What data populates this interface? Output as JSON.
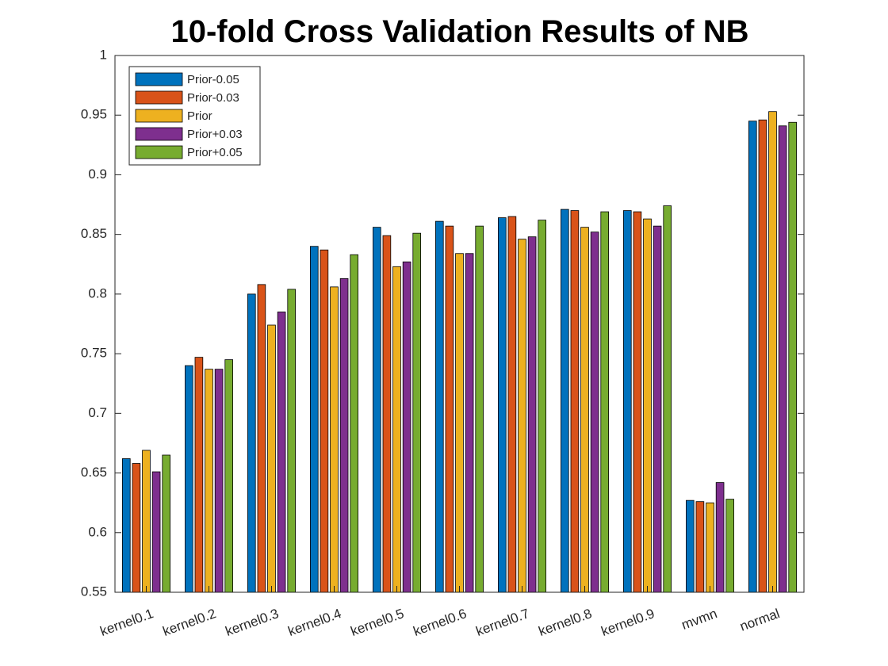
{
  "chart_data": {
    "type": "bar",
    "title": "10-fold Cross Validation Results of NB",
    "xlabel": "",
    "ylabel": "",
    "ylim": [
      0.55,
      1
    ],
    "yticks": [
      "0.55",
      "0.6",
      "0.65",
      "0.7",
      "0.75",
      "0.8",
      "0.85",
      "0.9",
      "0.95",
      "1"
    ],
    "grid": false,
    "legend_position": "top-left",
    "categories": [
      "kernel0.1",
      "kernel0.2",
      "kernel0.3",
      "kernel0.4",
      "kernel0.5",
      "kernel0.6",
      "kernel0.7",
      "kernel0.8",
      "kernel0.9",
      "mvmn",
      "normal"
    ],
    "series": [
      {
        "name": "Prior-0.05",
        "color": "#0072BD",
        "values": [
          0.662,
          0.74,
          0.8,
          0.84,
          0.856,
          0.861,
          0.864,
          0.871,
          0.87,
          0.627,
          0.945
        ]
      },
      {
        "name": "Prior-0.03",
        "color": "#D95319",
        "values": [
          0.658,
          0.747,
          0.808,
          0.837,
          0.849,
          0.857,
          0.865,
          0.87,
          0.869,
          0.626,
          0.946
        ]
      },
      {
        "name": "Prior",
        "color": "#EDB120",
        "values": [
          0.669,
          0.737,
          0.774,
          0.806,
          0.823,
          0.834,
          0.846,
          0.856,
          0.863,
          0.625,
          0.953
        ]
      },
      {
        "name": "Prior+0.03",
        "color": "#7E2F8E",
        "values": [
          0.651,
          0.737,
          0.785,
          0.813,
          0.827,
          0.834,
          0.848,
          0.852,
          0.857,
          0.642,
          0.941
        ]
      },
      {
        "name": "Prior+0.05",
        "color": "#77AC30",
        "values": [
          0.665,
          0.745,
          0.804,
          0.833,
          0.851,
          0.857,
          0.862,
          0.869,
          0.874,
          0.628,
          0.944
        ]
      }
    ]
  }
}
